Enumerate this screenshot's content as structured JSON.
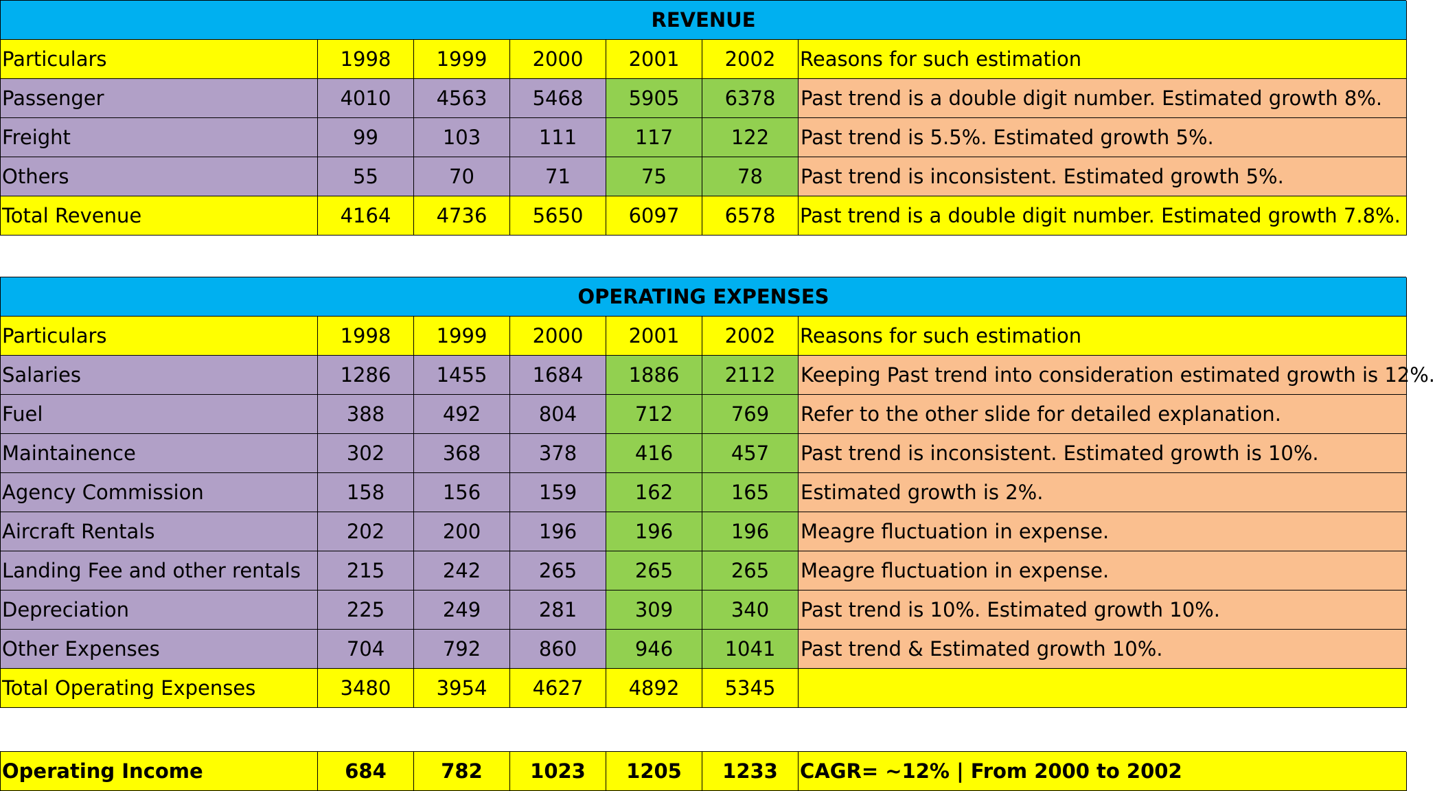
{
  "revenue": {
    "title": "REVENUE",
    "header": {
      "particulars": "Particulars",
      "years": [
        "1998",
        "1999",
        "2000",
        "2001",
        "2002"
      ],
      "reasons": "Reasons for such estimation"
    },
    "rows": [
      {
        "label": "Passenger",
        "values": [
          "4010",
          "4563",
          "5468",
          "5905",
          "6378"
        ],
        "reason": "Past trend is a double digit number. Estimated growth 8%."
      },
      {
        "label": "Freight",
        "values": [
          "99",
          "103",
          "111",
          "117",
          "122"
        ],
        "reason": "Past trend is 5.5%. Estimated growth 5%."
      },
      {
        "label": "Others",
        "values": [
          "55",
          "70",
          "71",
          "75",
          "78"
        ],
        "reason": "Past trend is inconsistent. Estimated growth 5%."
      }
    ],
    "total": {
      "label": "Total Revenue",
      "values": [
        "4164",
        "4736",
        "5650",
        "6097",
        "6578"
      ],
      "reason": "Past trend is a double digit number. Estimated growth 7.8%."
    }
  },
  "expenses": {
    "title": "OPERATING EXPENSES",
    "header": {
      "particulars": "Particulars",
      "years": [
        "1998",
        "1999",
        "2000",
        "2001",
        "2002"
      ],
      "reasons": "Reasons for such estimation"
    },
    "rows": [
      {
        "label": "Salaries",
        "values": [
          "1286",
          "1455",
          "1684",
          "1886",
          "2112"
        ],
        "reason": "Keeping Past trend into consideration estimated growth is 12%."
      },
      {
        "label": "Fuel",
        "values": [
          "388",
          "492",
          "804",
          "712",
          "769"
        ],
        "reason": "Refer to the other slide for detailed explanation."
      },
      {
        "label": "Maintainence",
        "values": [
          "302",
          "368",
          "378",
          "416",
          "457"
        ],
        "reason": "Past trend is inconsistent. Estimated growth is 10%."
      },
      {
        "label": "Agency Commission",
        "values": [
          "158",
          "156",
          "159",
          "162",
          "165"
        ],
        "reason": "Estimated growth is 2%."
      },
      {
        "label": "Aircraft Rentals",
        "values": [
          "202",
          "200",
          "196",
          "196",
          "196"
        ],
        "reason": "Meagre fluctuation in expense."
      },
      {
        "label": "Landing Fee and other rentals",
        "values": [
          "215",
          "242",
          "265",
          "265",
          "265"
        ],
        "reason": "Meagre fluctuation in expense."
      },
      {
        "label": "Depreciation",
        "values": [
          "225",
          "249",
          "281",
          "309",
          "340"
        ],
        "reason": "Past trend is 10%. Estimated growth 10%."
      },
      {
        "label": "Other Expenses",
        "values": [
          "704",
          "792",
          "860",
          "946",
          "1041"
        ],
        "reason": "Past trend & Estimated growth 10%."
      }
    ],
    "total": {
      "label": "Total Operating Expenses",
      "values": [
        "3480",
        "3954",
        "4627",
        "4892",
        "5345"
      ],
      "reason": ""
    }
  },
  "operating_income": {
    "label": "Operating Income",
    "values": [
      "684",
      "782",
      "1023",
      "1205",
      "1233"
    ],
    "reason": "CAGR= ~12% | From 2000 to 2002"
  },
  "colors": {
    "title_bar": "#00b0f0",
    "header_row": "#ffff00",
    "historical_cells": "#b1a0c7",
    "estimated_cells": "#92d050",
    "reason_cells": "#fabf8f"
  }
}
